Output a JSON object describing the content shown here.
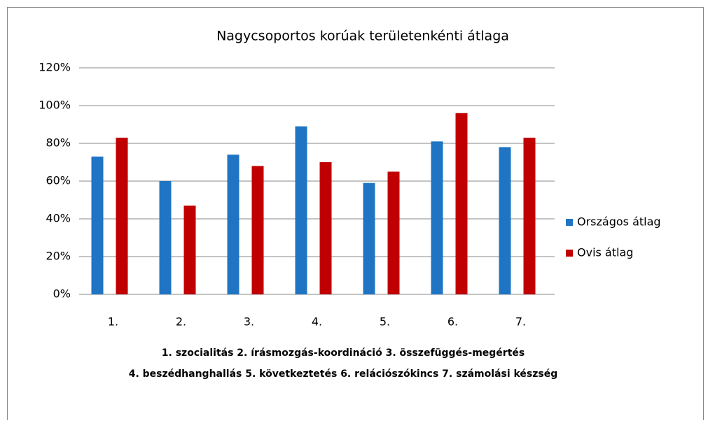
{
  "chart_data": {
    "type": "bar",
    "title": "Nagycsoportos korúak területenkénti átlaga",
    "categories": [
      "1.",
      "2.",
      "3.",
      "4.",
      "5.",
      "6.",
      "7."
    ],
    "series": [
      {
        "name": "Országos átlag",
        "color": "#1f74c4",
        "values": [
          73,
          60,
          74,
          89,
          59,
          81,
          78
        ]
      },
      {
        "name": "Ovis átlag",
        "color": "#c00000",
        "values": [
          83,
          47,
          68,
          70,
          65,
          96,
          83
        ]
      }
    ],
    "ylim": [
      0,
      120
    ],
    "yticks": [
      {
        "value": 0,
        "label": "0%"
      },
      {
        "value": 20,
        "label": "20%"
      },
      {
        "value": 40,
        "label": "40%"
      },
      {
        "value": 60,
        "label": "60%"
      },
      {
        "value": 80,
        "label": "80%"
      },
      {
        "value": 100,
        "label": "100%"
      },
      {
        "value": 120,
        "label": "120%"
      }
    ],
    "grid": true,
    "legend": "right",
    "caption_lines": [
      "1. szocialitás  2. írásmozgás-koordináció  3. összefüggés-megértés",
      "4. beszédhanghallás  5. következtetés  6. relációszókincs  7. számolási készség"
    ]
  }
}
